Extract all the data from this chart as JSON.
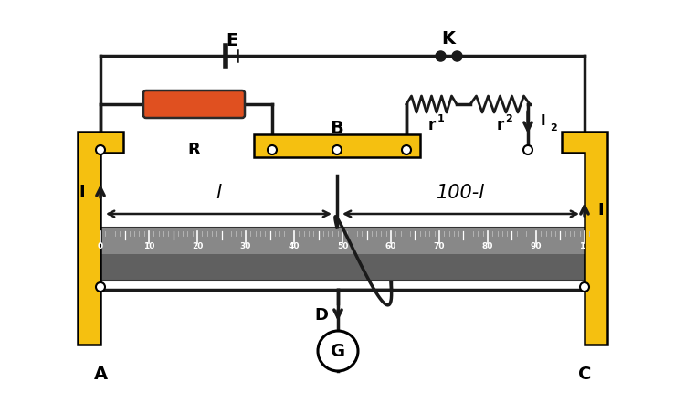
{
  "bg_color": "#ffffff",
  "yellow_color": "#F5C010",
  "wire_color": "#1a1a1a",
  "resistor_fill": "#E05020",
  "ruler_color": "#666666",
  "label_E": "E",
  "label_K": "K",
  "label_R": "R",
  "label_B": "B",
  "label_r1": "r",
  "label_r2": "r",
  "label_A": "A",
  "label_C": "C",
  "label_D": "D",
  "label_G": "G",
  "label_l": "l",
  "label_100l": "100-l",
  "label_I_left": "I",
  "label_I_right": "I",
  "label_I2": "I",
  "sub1": "1",
  "sub2": "2",
  "sub_I2": "2"
}
